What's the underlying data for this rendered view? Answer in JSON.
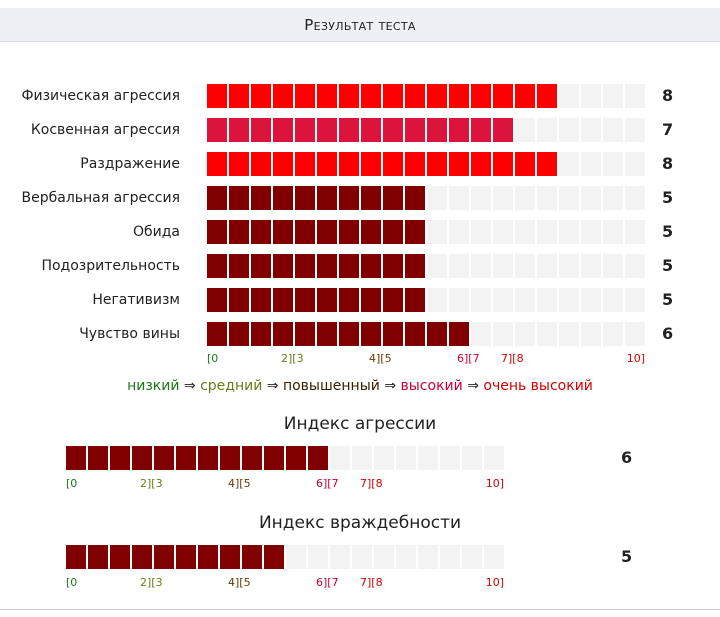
{
  "header": {
    "title": "Результат теста"
  },
  "colors": {
    "very_high": "#ff0000",
    "high": "#dc143c",
    "raised": "#800000",
    "empty": "#f3f3f3"
  },
  "chart_data": [
    {
      "type": "bar",
      "title": "",
      "orientation": "horizontal",
      "xlim": [
        0,
        10
      ],
      "categories": [
        "Физическая агрессия",
        "Косвенная агрессия",
        "Раздражение",
        "Вербальная агрессия",
        "Обида",
        "Подозрительность",
        "Негативизм",
        "Чувство вины"
      ],
      "values": [
        8,
        7,
        8,
        5,
        5,
        5,
        5,
        6
      ],
      "value_labels": [
        "8",
        "7",
        "8",
        "5",
        "5",
        "5",
        "5",
        "6"
      ],
      "bar_colors": [
        "#ff0000",
        "#dc143c",
        "#ff0000",
        "#800000",
        "#800000",
        "#800000",
        "#800000",
        "#800000"
      ],
      "scale_ticks": [
        "[0",
        "2][3",
        "4][5",
        "6][7",
        "7][8",
        "10]"
      ],
      "legend": [
        "низкий",
        "средний",
        "повышенный",
        "высокий",
        "очень высокий"
      ],
      "legend_separator": "⇒"
    },
    {
      "type": "bar",
      "title": "Индекс агрессии",
      "orientation": "horizontal",
      "xlim": [
        0,
        10
      ],
      "values": [
        6
      ],
      "value_labels": [
        "6"
      ],
      "bar_colors": [
        "#800000"
      ],
      "scale_ticks": [
        "[0",
        "2][3",
        "4][5",
        "6][7",
        "7][8",
        "10]"
      ]
    },
    {
      "type": "bar",
      "title": "Индекс враждебности",
      "orientation": "horizontal",
      "xlim": [
        0,
        10
      ],
      "values": [
        5
      ],
      "value_labels": [
        "5"
      ],
      "bar_colors": [
        "#800000"
      ],
      "scale_ticks": [
        "[0",
        "2][3",
        "4][5",
        "6][7",
        "7][8",
        "10]"
      ]
    }
  ]
}
